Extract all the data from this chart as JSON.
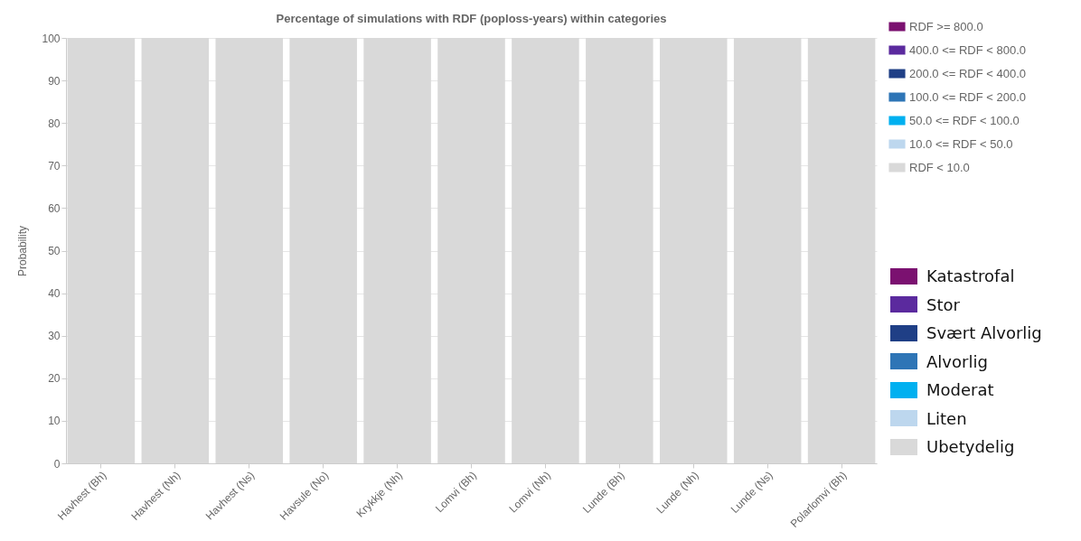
{
  "chart_data": {
    "type": "bar",
    "title": "Percentage of simulations with RDF (poploss-years) within categories",
    "ylabel": "Probability",
    "categories": [
      "Havhest (Bh)",
      "Havhest (Nh)",
      "Havhest (Ns)",
      "Havsule (No)",
      "Krykkje (Nh)",
      "Lomvi (Bh)",
      "Lomvi (Nh)",
      "Lunde (Bh)",
      "Lunde (Nh)",
      "Lunde (Ns)",
      "Polarlomvi (Bh)"
    ],
    "stacked": true,
    "series": [
      {
        "name": "RDF < 10.0",
        "color": "#d9d9d9",
        "values": [
          100,
          100,
          100,
          100,
          100,
          100,
          100,
          100,
          100,
          100,
          100
        ]
      },
      {
        "name": "10.0 <= RDF < 50.0",
        "color": "#bdd7ee",
        "values": [
          0,
          0,
          0,
          0,
          0,
          0,
          0,
          0,
          0,
          0,
          0
        ]
      },
      {
        "name": "50.0 <= RDF < 100.0",
        "color": "#00b0f0",
        "values": [
          0,
          0,
          0,
          0,
          0,
          0,
          0,
          0,
          0,
          0,
          0
        ]
      },
      {
        "name": "100.0 <= RDF < 200.0",
        "color": "#2e75b6",
        "values": [
          0,
          0,
          0,
          0,
          0,
          0,
          0,
          0,
          0,
          0,
          0
        ]
      },
      {
        "name": "200.0 <= RDF < 400.0",
        "color": "#1f3f86",
        "values": [
          0,
          0,
          0,
          0,
          0,
          0,
          0,
          0,
          0,
          0,
          0
        ]
      },
      {
        "name": "400.0 <= RDF < 800.0",
        "color": "#5b2a9e",
        "values": [
          0,
          0,
          0,
          0,
          0,
          0,
          0,
          0,
          0,
          0,
          0
        ]
      },
      {
        "name": "RDF >= 800.0",
        "color": "#7b1170",
        "values": [
          0,
          0,
          0,
          0,
          0,
          0,
          0,
          0,
          0,
          0,
          0
        ]
      }
    ],
    "ylim": [
      0,
      100
    ],
    "yticks": [
      0,
      10,
      20,
      30,
      40,
      50,
      60,
      70,
      80,
      90,
      100
    ],
    "grid": "y",
    "legend": "top right",
    "annotations": [
      "Ubetydelig",
      "Liten",
      "Moderat",
      "Alvorlig",
      "Svært Alvorlig",
      "Stor",
      "Katastrofal"
    ]
  }
}
